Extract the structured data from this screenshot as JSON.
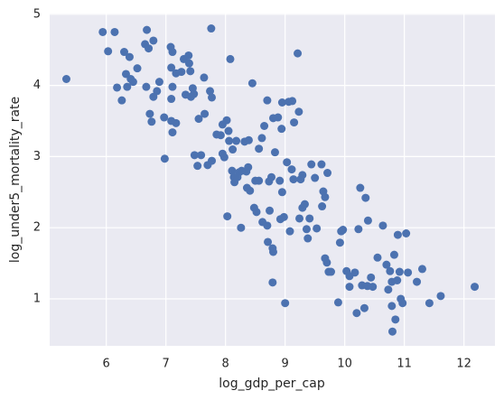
{
  "chart_data": {
    "type": "scatter",
    "xlabel": "log_gdp_per_cap",
    "ylabel": "log_under5_mortality_rate",
    "color": "#4c72b0",
    "grid": true,
    "xlim": [
      5.05,
      12.52
    ],
    "ylim": [
      0.34,
      5.01
    ],
    "xticks": [
      6,
      7,
      8,
      9,
      10,
      11,
      12
    ],
    "yticks": [
      1,
      2,
      3,
      4,
      5
    ],
    "x": [
      5.33,
      5.94,
      6.03,
      6.14,
      6.18,
      6.26,
      6.3,
      6.33,
      6.35,
      6.39,
      6.41,
      6.45,
      6.52,
      6.65,
      6.68,
      6.67,
      6.71,
      6.73,
      6.76,
      6.79,
      6.79,
      6.85,
      6.89,
      6.97,
      6.98,
      7.08,
      7.09,
      7.11,
      7.11,
      7.09,
      7.09,
      7.11,
      7.17,
      7.17,
      7.26,
      7.3,
      7.33,
      7.38,
      7.39,
      7.41,
      7.42,
      7.45,
      7.47,
      7.48,
      7.53,
      7.55,
      7.59,
      7.64,
      7.65,
      7.7,
      7.74,
      7.76,
      7.77,
      7.77,
      7.85,
      7.92,
      7.95,
      7.95,
      7.98,
      8.02,
      8.03,
      8.05,
      8.06,
      8.08,
      8.11,
      8.12,
      8.14,
      8.15,
      8.18,
      8.2,
      8.23,
      8.26,
      8.27,
      8.32,
      8.35,
      8.36,
      8.38,
      8.39,
      8.41,
      8.45,
      8.48,
      8.5,
      8.52,
      8.56,
      8.56,
      8.61,
      8.62,
      8.65,
      8.7,
      8.7,
      8.71,
      8.73,
      8.74,
      8.77,
      8.79,
      8.79,
      8.8,
      8.8,
      8.83,
      8.88,
      8.91,
      8.92,
      8.94,
      8.95,
      8.95,
      8.98,
      9.0,
      9.03,
      9.06,
      9.08,
      9.11,
      9.12,
      9.14,
      9.15,
      9.21,
      9.23,
      9.26,
      9.24,
      9.29,
      9.29,
      9.33,
      9.36,
      9.38,
      9.41,
      9.44,
      9.5,
      9.53,
      9.61,
      9.62,
      9.64,
      9.67,
      9.67,
      9.7,
      9.71,
      9.73,
      9.77,
      9.89,
      9.92,
      9.94,
      9.97,
      10.03,
      10.08,
      10.08,
      10.17,
      10.2,
      10.23,
      10.26,
      10.29,
      10.35,
      10.33,
      10.38,
      10.39,
      10.44,
      10.47,
      10.55,
      10.64,
      10.7,
      10.73,
      10.76,
      10.79,
      10.79,
      10.8,
      10.83,
      10.85,
      10.88,
      10.89,
      10.92,
      10.94,
      10.97,
      11.03,
      11.06,
      11.21,
      11.3,
      11.42,
      11.61,
      12.18
    ],
    "y": [
      4.09,
      4.75,
      4.48,
      4.75,
      3.97,
      3.79,
      4.47,
      4.16,
      3.98,
      4.4,
      4.09,
      4.05,
      4.24,
      4.58,
      4.78,
      3.98,
      4.52,
      3.6,
      3.49,
      4.63,
      3.84,
      3.92,
      4.05,
      3.55,
      2.97,
      4.54,
      4.25,
      4.47,
      3.98,
      3.81,
      3.5,
      3.34,
      4.17,
      3.47,
      4.19,
      4.37,
      3.87,
      4.42,
      4.31,
      4.2,
      3.84,
      3.96,
      3.88,
      3.02,
      2.87,
      3.53,
      3.02,
      4.11,
      3.6,
      2.88,
      3.92,
      4.8,
      3.83,
      2.94,
      3.31,
      3.3,
      3.45,
      3.04,
      2.99,
      3.51,
      2.16,
      3.36,
      3.22,
      4.37,
      2.8,
      3.1,
      2.71,
      2.64,
      3.22,
      2.71,
      2.78,
      2.0,
      2.8,
      3.21,
      2.79,
      2.56,
      2.85,
      3.23,
      2.52,
      4.03,
      2.28,
      2.66,
      2.22,
      2.66,
      3.11,
      3.26,
      2.08,
      3.43,
      3.79,
      2.03,
      1.8,
      2.65,
      2.24,
      2.71,
      1.71,
      1.23,
      1.66,
      3.54,
      3.06,
      3.55,
      2.66,
      2.12,
      3.39,
      3.76,
      2.5,
      2.15,
      0.94,
      2.92,
      3.77,
      1.95,
      2.82,
      3.78,
      2.68,
      3.48,
      4.45,
      3.63,
      2.68,
      2.13,
      2.74,
      2.28,
      2.33,
      1.98,
      1.85,
      2.13,
      2.89,
      2.7,
      1.99,
      2.89,
      2.3,
      2.51,
      2.43,
      1.57,
      1.51,
      2.77,
      1.38,
      1.38,
      0.95,
      1.79,
      1.95,
      1.97,
      1.39,
      1.32,
      1.17,
      1.37,
      0.8,
      1.98,
      2.56,
      1.19,
      2.42,
      0.87,
      1.18,
      2.1,
      1.3,
      1.17,
      1.58,
      2.03,
      1.48,
      1.13,
      1.39,
      0.9,
      1.24,
      0.54,
      1.62,
      0.71,
      1.26,
      1.9,
      1.38,
      1.0,
      0.94,
      1.92,
      1.37,
      1.24,
      1.42,
      0.94,
      1.04,
      1.17
    ]
  }
}
